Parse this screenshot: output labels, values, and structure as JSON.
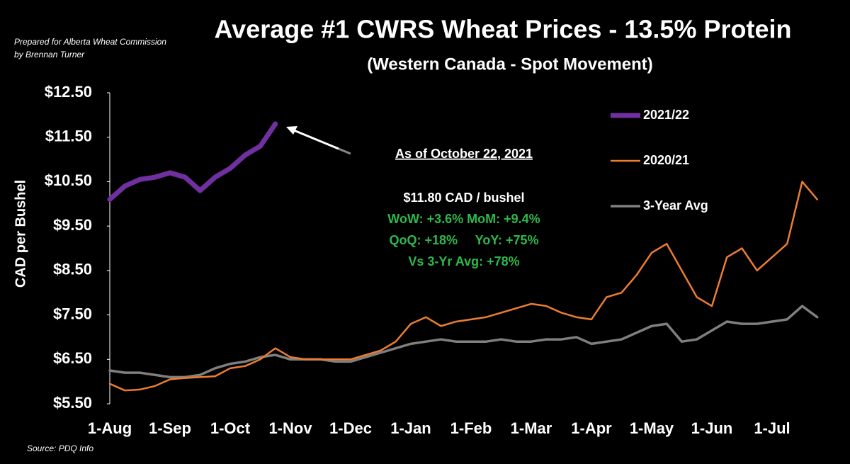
{
  "chart_data": {
    "type": "line",
    "title": "Average #1 CWRS Wheat Prices - 13.5% Protein",
    "subtitle": "(Western Canada - Spot Movement)",
    "ylabel": "CAD per Bushel",
    "credit": "Prepared for Alberta Wheat Commission by Brennan Turner",
    "source": "Source: PDQ Info",
    "annotations": [
      "As of October 22, 2021",
      "$11.80 CAD / bushel",
      "WoW: +3.6%  MoM: +9.4%",
      "QoQ: +18%     YoY: +75%",
      "Vs 3-Yr Avg: +78%"
    ],
    "legend": "right",
    "categories": [
      "1-Aug",
      null,
      null,
      null,
      "1-Sep",
      null,
      null,
      null,
      "1-Oct",
      null,
      null,
      null,
      "1-Nov",
      null,
      null,
      null,
      "1-Dec",
      null,
      null,
      null,
      "1-Jan",
      null,
      null,
      null,
      "1-Feb",
      null,
      null,
      null,
      "1-Mar",
      null,
      null,
      null,
      "1-Apr",
      null,
      null,
      null,
      "1-May",
      null,
      null,
      null,
      "1-Jun",
      null,
      null,
      null,
      "1-Jul",
      null,
      null,
      null
    ],
    "ylim": [
      5.5,
      12.5
    ],
    "yticks": [
      {
        "value": 5.5,
        "label": "$5.50"
      },
      {
        "value": 6.5,
        "label": "$6.50"
      },
      {
        "value": 7.5,
        "label": "$7.50"
      },
      {
        "value": 8.5,
        "label": "$8.50"
      },
      {
        "value": 9.5,
        "label": "$9.50"
      },
      {
        "value": 10.5,
        "label": "$10.50"
      },
      {
        "value": 11.5,
        "label": "$11.50"
      },
      {
        "value": 12.5,
        "label": "$12.50"
      }
    ],
    "series": [
      {
        "name": "2021/22",
        "color": "#7030a0",
        "width": 7,
        "values": [
          10.1,
          10.4,
          10.55,
          10.6,
          10.7,
          10.6,
          10.3,
          10.6,
          10.8,
          11.1,
          11.3,
          11.8,
          null,
          null,
          null,
          null,
          null,
          null,
          null,
          null,
          null,
          null,
          null,
          null,
          null,
          null,
          null,
          null,
          null,
          null,
          null,
          null,
          null,
          null,
          null,
          null,
          null,
          null,
          null,
          null,
          null,
          null,
          null,
          null,
          null,
          null,
          null,
          null
        ]
      },
      {
        "name": "2020/21",
        "color": "#ed7d31",
        "width": 2.5,
        "values": [
          5.95,
          5.8,
          5.82,
          5.9,
          6.05,
          6.08,
          6.1,
          6.12,
          6.3,
          6.35,
          6.5,
          6.75,
          6.55,
          6.5,
          6.5,
          6.5,
          6.5,
          6.6,
          6.7,
          6.9,
          7.3,
          7.45,
          7.25,
          7.35,
          7.4,
          7.45,
          7.55,
          7.65,
          7.75,
          7.7,
          7.55,
          7.45,
          7.4,
          7.9,
          8.0,
          8.4,
          8.9,
          9.1,
          8.5,
          7.9,
          7.7,
          8.8,
          9.0,
          8.5,
          8.8,
          9.1,
          10.5,
          10.1
        ]
      },
      {
        "name": "3-Year Avg",
        "color": "#7f7f7f",
        "width": 3.5,
        "values": [
          6.25,
          6.2,
          6.2,
          6.15,
          6.1,
          6.1,
          6.15,
          6.3,
          6.4,
          6.45,
          6.55,
          6.6,
          6.5,
          6.5,
          6.5,
          6.45,
          6.45,
          6.55,
          6.65,
          6.75,
          6.85,
          6.9,
          6.95,
          6.9,
          6.9,
          6.9,
          6.95,
          6.9,
          6.9,
          6.95,
          6.95,
          7.0,
          6.85,
          6.9,
          6.95,
          7.1,
          7.25,
          7.3,
          6.9,
          6.95,
          7.15,
          7.35,
          7.3,
          7.3,
          7.35,
          7.4,
          7.7,
          7.45
        ]
      }
    ]
  }
}
